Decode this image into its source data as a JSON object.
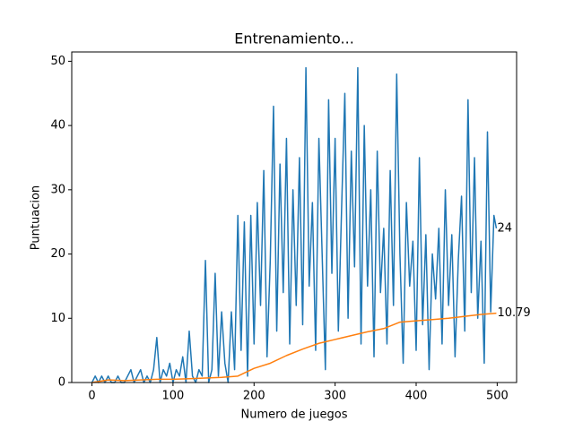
{
  "chart_data": {
    "type": "line",
    "title": "Entrenamiento...",
    "x_label": "Numero de juegos",
    "y_label": "Puntuacion",
    "xlim": [
      -24.95,
      523.95
    ],
    "ylim": [
      0,
      51.45
    ],
    "xticks": [
      0,
      100,
      200,
      300,
      400,
      500
    ],
    "yticks": [
      0,
      10,
      20,
      30,
      40,
      50
    ],
    "series": [
      {
        "color": "#1f77b4",
        "x": [
          0,
          4,
          8,
          12,
          16,
          20,
          24,
          28,
          32,
          36,
          40,
          44,
          48,
          52,
          56,
          60,
          64,
          68,
          72,
          76,
          80,
          84,
          88,
          92,
          96,
          100,
          104,
          108,
          112,
          116,
          120,
          124,
          128,
          132,
          136,
          140,
          144,
          148,
          152,
          156,
          160,
          164,
          168,
          172,
          176,
          180,
          184,
          188,
          192,
          196,
          200,
          204,
          208,
          212,
          216,
          220,
          224,
          228,
          232,
          236,
          240,
          244,
          248,
          252,
          256,
          260,
          264,
          268,
          272,
          276,
          280,
          284,
          288,
          292,
          296,
          300,
          304,
          308,
          312,
          316,
          320,
          324,
          328,
          332,
          336,
          340,
          344,
          348,
          352,
          356,
          360,
          364,
          368,
          372,
          376,
          380,
          384,
          388,
          392,
          396,
          400,
          404,
          408,
          412,
          416,
          420,
          424,
          428,
          432,
          436,
          440,
          444,
          448,
          452,
          456,
          460,
          464,
          468,
          472,
          476,
          480,
          484,
          488,
          492,
          496,
          499
        ],
        "values": [
          0,
          1,
          0,
          1,
          0,
          1,
          0,
          0,
          1,
          0,
          0,
          1,
          2,
          0,
          1,
          2,
          0,
          1,
          0,
          2,
          7,
          0,
          2,
          1,
          3,
          0,
          2,
          1,
          4,
          0,
          8,
          1,
          0,
          2,
          1,
          19,
          0,
          2,
          17,
          1,
          11,
          3,
          0,
          11,
          2,
          26,
          5,
          25,
          1,
          26,
          6,
          28,
          12,
          33,
          4,
          19,
          43,
          8,
          34,
          14,
          38,
          6,
          30,
          12,
          35,
          9,
          49,
          15,
          28,
          5,
          38,
          20,
          2,
          44,
          17,
          38,
          8,
          27,
          45,
          10,
          36,
          18,
          49,
          6,
          40,
          15,
          30,
          4,
          36,
          14,
          24,
          6,
          33,
          12,
          48,
          20,
          3,
          28,
          15,
          22,
          5,
          35,
          9,
          23,
          2,
          20,
          13,
          24,
          6,
          30,
          12,
          23,
          4,
          19,
          29,
          8,
          44,
          14,
          35,
          10,
          22,
          3,
          39,
          11,
          26,
          24
        ]
      },
      {
        "color": "#ff7f0e",
        "x": [
          0,
          20,
          40,
          60,
          80,
          100,
          120,
          140,
          160,
          180,
          200,
          220,
          240,
          260,
          280,
          300,
          320,
          340,
          360,
          380,
          400,
          420,
          440,
          460,
          480,
          499
        ],
        "values": [
          0,
          0.4,
          0.3,
          0.4,
          0.5,
          0.5,
          0.6,
          0.7,
          0.8,
          1.0,
          2.2,
          3.0,
          4.2,
          5.2,
          6.1,
          6.7,
          7.3,
          7.9,
          8.4,
          9.4,
          9.6,
          9.8,
          10.0,
          10.3,
          10.6,
          10.79
        ]
      }
    ]
  }
}
